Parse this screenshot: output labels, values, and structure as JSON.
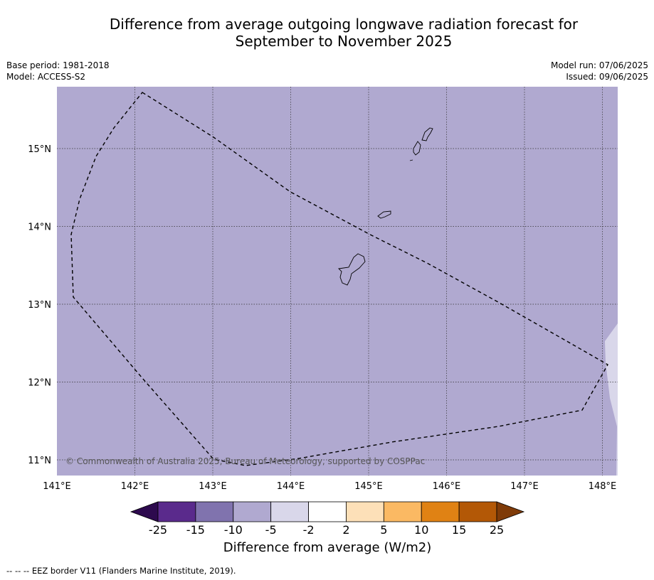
{
  "title_line1": "Difference from average outgoing longwave radiation forecast for",
  "title_line2": "September to November 2025",
  "meta_left": {
    "base_period": "Base period: 1981-2018",
    "model": "Model: ACCESS-S2"
  },
  "meta_right": {
    "model_run": "Model run: 07/06/2025",
    "issued": "Issued: 09/06/2025"
  },
  "copyright": "© Commonwealth of Australia 2025, Bureau of Meteorology, supported by COSPPac",
  "map": {
    "lon_labels": [
      "141°E",
      "142°E",
      "143°E",
      "144°E",
      "145°E",
      "146°E",
      "147°E",
      "148°E"
    ],
    "lat_labels": [
      "15°N",
      "14°N",
      "13°N",
      "12°N",
      "11°N"
    ],
    "background_color": "#b0a9d0",
    "light_color": "#d9d7ea"
  },
  "colorbar": {
    "labels": [
      "-25",
      "-15",
      "-10",
      "-5",
      "-2",
      "2",
      "5",
      "10",
      "15",
      "25"
    ],
    "colors": [
      "#2d0a4e",
      "#5a2a8c",
      "#8073ae",
      "#b0a9d0",
      "#d9d7ea",
      "#ffffff",
      "#fde0b8",
      "#fbb963",
      "#e08214",
      "#b35806",
      "#7f3b08"
    ],
    "title": "Difference from average (W/m2)"
  },
  "footer": "--  --  -- EEZ border V11 (Flanders Marine Institute, 2019)."
}
